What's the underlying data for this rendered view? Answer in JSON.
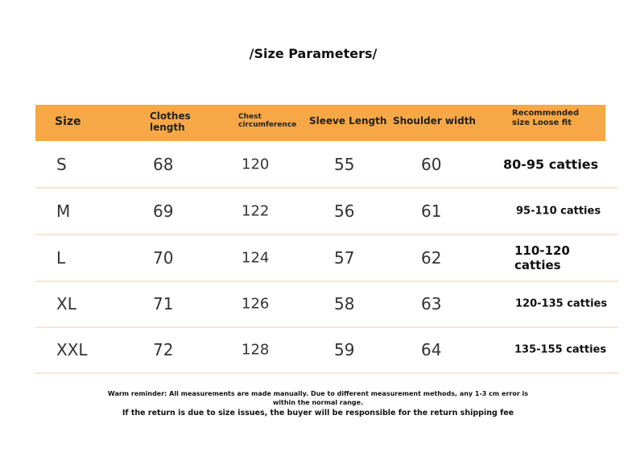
{
  "title": "/Size Parameters/",
  "headers": [
    "Size",
    "Clothes length",
    "Chest circumference",
    "Sleeve Length",
    "Shoulder width",
    "Recommended size Loose fit"
  ],
  "rows": [
    {
      "size": "S",
      "length": "68",
      "chest": "120",
      "sleeve": "55",
      "shoulder": "60",
      "recommended": "80-95 catties"
    },
    {
      "size": "M",
      "length": "69",
      "chest": "122",
      "sleeve": "56",
      "shoulder": "61",
      "recommended": "95-110 catties"
    },
    {
      "size": "L",
      "length": "70",
      "chest": "124",
      "sleeve": "57",
      "shoulder": "62",
      "recommended": "110-120 catties"
    },
    {
      "size": "XL",
      "length": "71",
      "chest": "126",
      "sleeve": "58",
      "shoulder": "63",
      "recommended": "120-135 catties"
    },
    {
      "size": "XXL",
      "length": "72",
      "chest": "128",
      "sleeve": "59",
      "shoulder": "64",
      "recommended": "135-155 catties"
    }
  ],
  "notes": {
    "reminder_line1": "Warm reminder: All measurements are made manually. Due to different measurement methods, any 1-3 cm error is",
    "reminder_line2": "within the normal range.",
    "returns": "If the return is due to size issues, the buyer will be responsible for the return shipping fee"
  },
  "colors": {
    "header": "#f6a847",
    "row_divider": "#f6e6d2"
  }
}
